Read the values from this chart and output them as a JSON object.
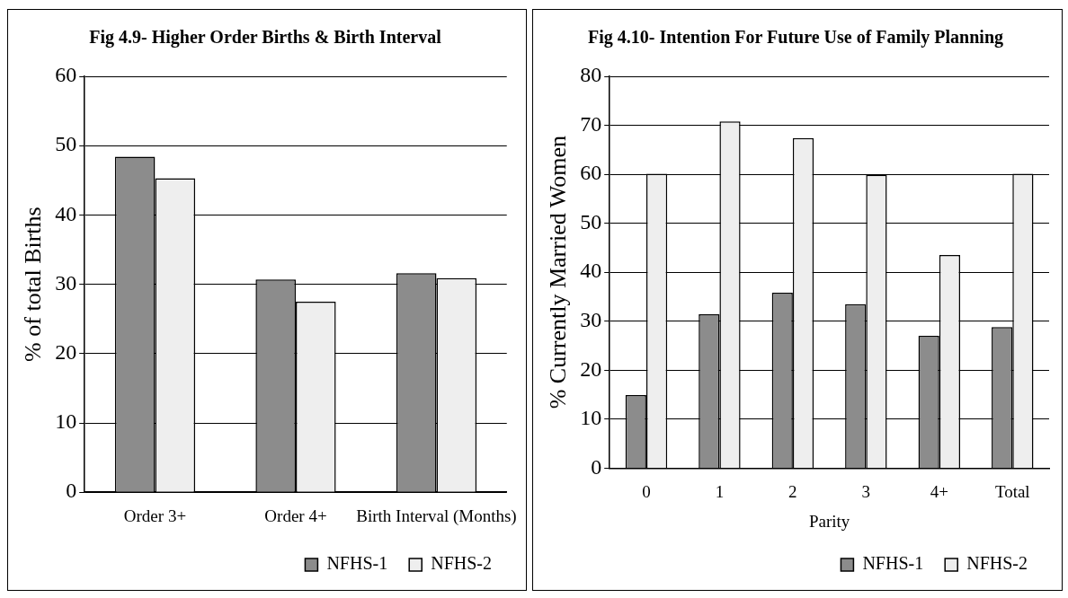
{
  "chart_data": [
    {
      "type": "bar",
      "title": "Fig 4.9- Higher Order Births & Birth Interval",
      "ylabel": "% of total Births",
      "categories": [
        "Order 3+",
        "Order 4+",
        "Birth Interval (Months)"
      ],
      "series": [
        {
          "name": "NFHS-1",
          "color": "#8c8c8c",
          "values": [
            48.4,
            30.7,
            31.6
          ]
        },
        {
          "name": "NFHS-2",
          "color": "#eeeeee",
          "values": [
            45.3,
            27.5,
            30.9
          ]
        }
      ],
      "ylim": [
        0,
        60
      ],
      "yticks": [
        0,
        10,
        20,
        30,
        40,
        50,
        60
      ],
      "grid": "y",
      "legend": "bottom right"
    },
    {
      "type": "bar",
      "title": "Fig 4.10- Intention For Future Use of Family Planning",
      "xlabel": "Parity",
      "ylabel": "% Currently Married Women",
      "categories": [
        "0",
        "1",
        "2",
        "3",
        "4+",
        "Total"
      ],
      "series": [
        {
          "name": "NFHS-1",
          "color": "#8c8c8c",
          "values": [
            14.9,
            31.4,
            35.8,
            33.5,
            27.0,
            28.8
          ]
        },
        {
          "name": "NFHS-2",
          "color": "#eeeeee",
          "values": [
            60.1,
            70.8,
            67.4,
            59.9,
            43.5,
            60.1
          ]
        }
      ],
      "ylim": [
        0,
        80
      ],
      "yticks": [
        0,
        10,
        20,
        30,
        40,
        50,
        60,
        70,
        80
      ],
      "grid": "y",
      "legend": "bottom right"
    }
  ]
}
